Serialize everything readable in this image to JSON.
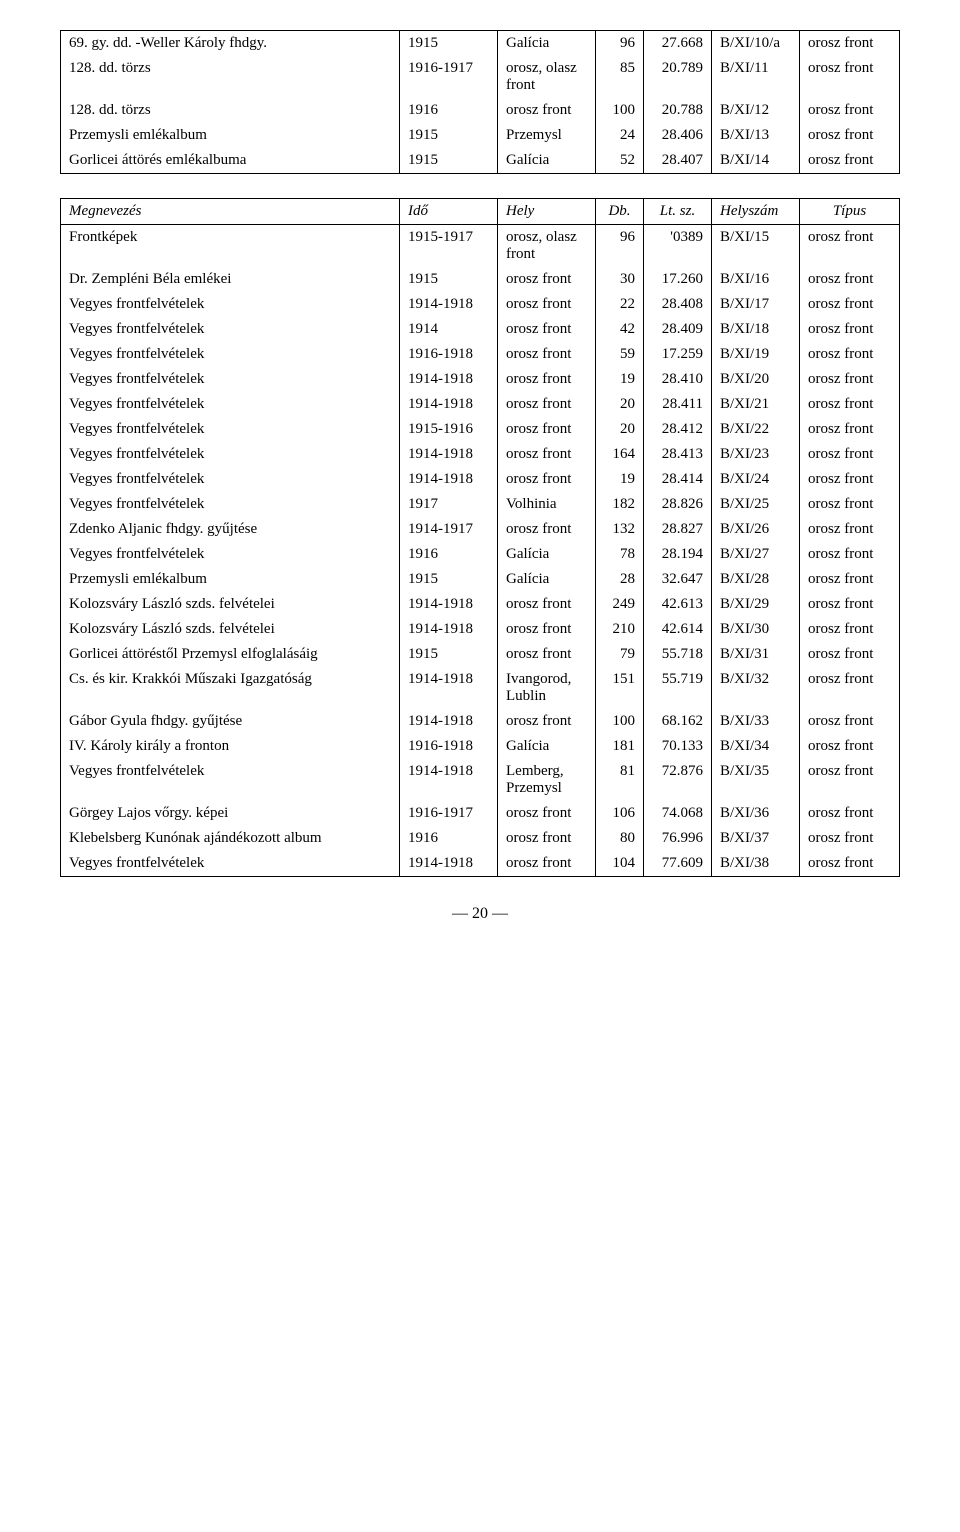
{
  "table1": {
    "rows": [
      {
        "name": "69. gy. dd. -Weller Károly fhdgy.",
        "ido": "1915",
        "hely": "Galícia",
        "db": "96",
        "lt": "27.668",
        "helyszam": "B/XI/10/a",
        "tipus": "orosz front"
      },
      {
        "name": "128. dd. törzs",
        "ido": "1916-1917",
        "hely": "orosz, olasz front",
        "db": "85",
        "lt": "20.789",
        "helyszam": "B/XI/11",
        "tipus": "orosz front"
      },
      {
        "name": "128. dd. törzs",
        "ido": "1916",
        "hely": "orosz front",
        "db": "100",
        "lt": "20.788",
        "helyszam": "B/XI/12",
        "tipus": "orosz front"
      },
      {
        "name": "Przemysli emlékalbum",
        "ido": "1915",
        "hely": "Przemysl",
        "db": "24",
        "lt": "28.406",
        "helyszam": "B/XI/13",
        "tipus": "orosz front"
      },
      {
        "name": "Gorlicei áttörés emlékalbuma",
        "ido": "1915",
        "hely": "Galícia",
        "db": "52",
        "lt": "28.407",
        "helyszam": "B/XI/14",
        "tipus": "orosz front"
      }
    ]
  },
  "table2": {
    "headers": {
      "name": "Megnevezés",
      "ido": "Idő",
      "hely": "Hely",
      "db": "Db.",
      "lt": "Lt. sz.",
      "helyszam": "Helyszám",
      "tipus": "Típus"
    },
    "rows": [
      {
        "name": "Frontképek",
        "ido": "1915-1917",
        "hely": "orosz, olasz front",
        "db": "96",
        "lt": "'0389",
        "helyszam": "B/XI/15",
        "tipus": "orosz front"
      },
      {
        "name": "Dr. Zempléni Béla emlékei",
        "ido": "1915",
        "hely": "orosz front",
        "db": "30",
        "lt": "17.260",
        "helyszam": "B/XI/16",
        "tipus": "orosz front"
      },
      {
        "name": "Vegyes frontfelvételek",
        "ido": "1914-1918",
        "hely": "orosz front",
        "db": "22",
        "lt": "28.408",
        "helyszam": "B/XI/17",
        "tipus": "orosz front"
      },
      {
        "name": "Vegyes frontfelvételek",
        "ido": "1914",
        "hely": "orosz front",
        "db": "42",
        "lt": "28.409",
        "helyszam": "B/XI/18",
        "tipus": "orosz front"
      },
      {
        "name": "Vegyes frontfelvételek",
        "ido": "1916-1918",
        "hely": "orosz front",
        "db": "59",
        "lt": "17.259",
        "helyszam": "B/XI/19",
        "tipus": "orosz front"
      },
      {
        "name": "Vegyes frontfelvételek",
        "ido": "1914-1918",
        "hely": "orosz front",
        "db": "19",
        "lt": "28.410",
        "helyszam": "B/XI/20",
        "tipus": "orosz front"
      },
      {
        "name": "Vegyes frontfelvételek",
        "ido": "1914-1918",
        "hely": "orosz front",
        "db": "20",
        "lt": "28.411",
        "helyszam": "B/XI/21",
        "tipus": "orosz front"
      },
      {
        "name": "Vegyes frontfelvételek",
        "ido": "1915-1916",
        "hely": "orosz front",
        "db": "20",
        "lt": "28.412",
        "helyszam": "B/XI/22",
        "tipus": "orosz front"
      },
      {
        "name": "Vegyes frontfelvételek",
        "ido": "1914-1918",
        "hely": "orosz front",
        "db": "164",
        "lt": "28.413",
        "helyszam": "B/XI/23",
        "tipus": "orosz front"
      },
      {
        "name": "Vegyes frontfelvételek",
        "ido": "1914-1918",
        "hely": "orosz front",
        "db": "19",
        "lt": "28.414",
        "helyszam": "B/XI/24",
        "tipus": "orosz front"
      },
      {
        "name": "Vegyes frontfelvételek",
        "ido": "1917",
        "hely": "Volhinia",
        "db": "182",
        "lt": "28.826",
        "helyszam": "B/XI/25",
        "tipus": "orosz front"
      },
      {
        "name": "Zdenko Aljanic fhdgy. gyűjtése",
        "ido": "1914-1917",
        "hely": "orosz front",
        "db": "132",
        "lt": "28.827",
        "helyszam": "B/XI/26",
        "tipus": "orosz front"
      },
      {
        "name": "Vegyes frontfelvételek",
        "ido": "1916",
        "hely": "Galícia",
        "db": "78",
        "lt": "28.194",
        "helyszam": "B/XI/27",
        "tipus": "orosz front"
      },
      {
        "name": "Przemysli emlékalbum",
        "ido": "1915",
        "hely": "Galícia",
        "db": "28",
        "lt": "32.647",
        "helyszam": "B/XI/28",
        "tipus": "orosz front"
      },
      {
        "name": "Kolozsváry László szds. felvételei",
        "ido": "1914-1918",
        "hely": "orosz front",
        "db": "249",
        "lt": "42.613",
        "helyszam": "B/XI/29",
        "tipus": "orosz front"
      },
      {
        "name": "Kolozsváry László szds. felvételei",
        "ido": "1914-1918",
        "hely": "orosz front",
        "db": "210",
        "lt": "42.614",
        "helyszam": "B/XI/30",
        "tipus": "orosz front"
      },
      {
        "name": "Gorlicei áttöréstől Przemysl elfoglalásáig",
        "ido": "1915",
        "hely": "orosz front",
        "db": "79",
        "lt": "55.718",
        "helyszam": "B/XI/31",
        "tipus": "orosz front"
      },
      {
        "name": "Cs. és kir. Krakkói Műszaki Igazgatóság",
        "ido": "1914-1918",
        "hely": "Ivangorod, Lublin",
        "db": "151",
        "lt": "55.719",
        "helyszam": "B/XI/32",
        "tipus": "orosz front"
      },
      {
        "name": "Gábor Gyula fhdgy. gyűjtése",
        "ido": "1914-1918",
        "hely": "orosz front",
        "db": "100",
        "lt": "68.162",
        "helyszam": "B/XI/33",
        "tipus": "orosz front"
      },
      {
        "name": "IV. Károly király a fronton",
        "ido": "1916-1918",
        "hely": "Galícia",
        "db": "181",
        "lt": "70.133",
        "helyszam": "B/XI/34",
        "tipus": "orosz front"
      },
      {
        "name": "Vegyes frontfelvételek",
        "ido": "1914-1918",
        "hely": "Lemberg, Przemysl",
        "db": "81",
        "lt": "72.876",
        "helyszam": "B/XI/35",
        "tipus": "orosz front"
      },
      {
        "name": "Görgey Lajos vőrgy. képei",
        "ido": "1916-1917",
        "hely": "orosz front",
        "db": "106",
        "lt": "74.068",
        "helyszam": "B/XI/36",
        "tipus": "orosz front"
      },
      {
        "name": "Klebelsberg Kunónak ajándékozott album",
        "ido": "1916",
        "hely": "orosz front",
        "db": "80",
        "lt": "76.996",
        "helyszam": "B/XI/37",
        "tipus": "orosz front"
      },
      {
        "name": "Vegyes frontfelvételek",
        "ido": "1914-1918",
        "hely": "orosz front",
        "db": "104",
        "lt": "77.609",
        "helyszam": "B/XI/38",
        "tipus": "orosz front"
      }
    ]
  },
  "page_number": "— 20 —"
}
